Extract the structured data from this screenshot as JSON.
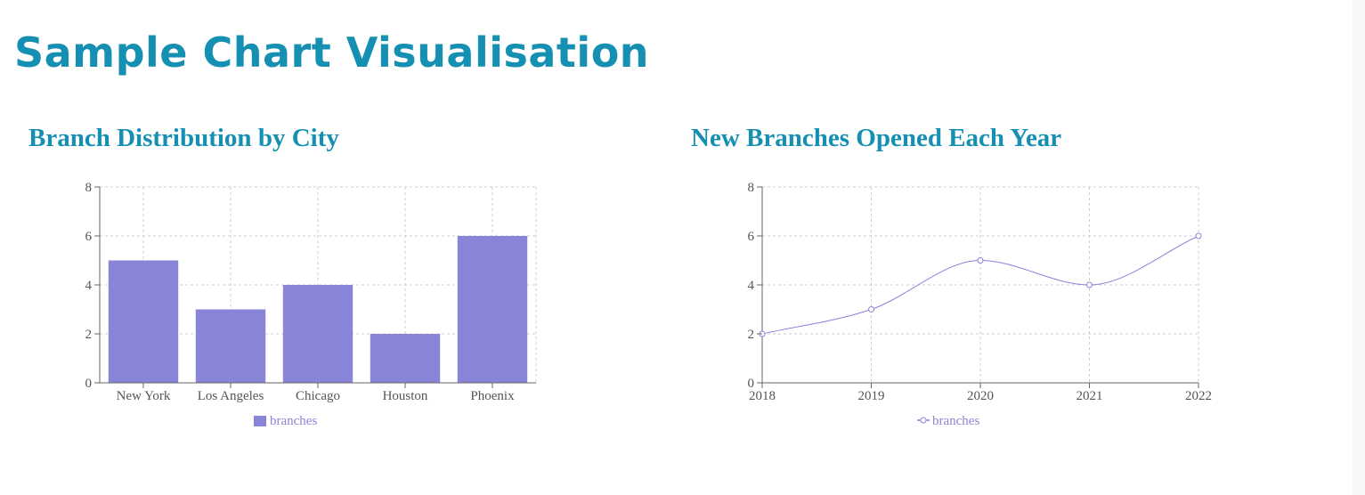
{
  "page": {
    "title": "Sample Chart Visualisation"
  },
  "colors": {
    "title": "#1590b2",
    "series": "#8884d8",
    "grid": "#cccccc",
    "axis": "#666666"
  },
  "chart_data": [
    {
      "type": "bar",
      "title": "Branch Distribution by City",
      "categories": [
        "New York",
        "Los Angeles",
        "Chicago",
        "Houston",
        "Phoenix"
      ],
      "series": [
        {
          "name": "branches",
          "values": [
            5,
            3,
            4,
            2,
            6
          ]
        }
      ],
      "ylim": [
        0,
        8
      ],
      "yticks": [
        "0",
        "2",
        "4",
        "6",
        "8"
      ],
      "grid": true,
      "legend": "bottom-center"
    },
    {
      "type": "line",
      "title": "New Branches Opened Each Year",
      "x": [
        "2018",
        "2019",
        "2020",
        "2021",
        "2022"
      ],
      "series": [
        {
          "name": "branches",
          "values": [
            2,
            3,
            5,
            4,
            6
          ]
        }
      ],
      "ylim": [
        0,
        8
      ],
      "yticks": [
        "0",
        "2",
        "4",
        "6",
        "8"
      ],
      "grid": true,
      "legend": "bottom-center"
    }
  ]
}
